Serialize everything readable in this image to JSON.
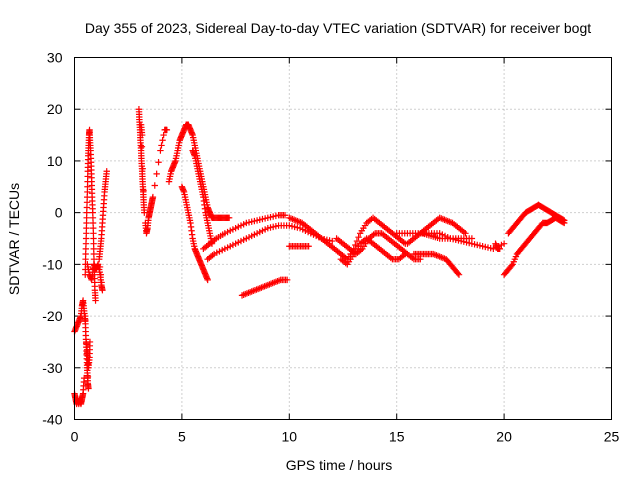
{
  "chart_data": {
    "type": "scatter",
    "title": "Day 355 of 2023, Sidereal Day-to-day VTEC variation (SDTVAR) for receiver bogt",
    "xlabel": "GPS time / hours",
    "ylabel": "SDTVAR / TECUs",
    "xlim": [
      0,
      25
    ],
    "ylim": [
      -40,
      30
    ],
    "xticks": [
      "0",
      "5",
      "10",
      "15",
      "20",
      "25"
    ],
    "yticks": [
      "-40",
      "-30",
      "-20",
      "-10",
      "0",
      "10",
      "20",
      "30"
    ],
    "grid": true,
    "marker": "+",
    "color": "#ff0000",
    "series": [
      {
        "name": "s1",
        "points": [
          [
            0.0,
            -23
          ],
          [
            0.1,
            -22
          ],
          [
            0.2,
            -21
          ],
          [
            0.3,
            -20
          ],
          [
            0.35,
            -18
          ],
          [
            0.4,
            -17
          ],
          [
            0.45,
            -19
          ],
          [
            0.5,
            -21
          ]
        ]
      },
      {
        "name": "s2",
        "points": [
          [
            0.0,
            -35
          ],
          [
            0.05,
            -36
          ],
          [
            0.1,
            -37
          ],
          [
            0.15,
            -36
          ],
          [
            0.2,
            -37
          ],
          [
            0.25,
            -36
          ],
          [
            0.3,
            -37
          ],
          [
            0.35,
            -36
          ],
          [
            0.4,
            -35
          ],
          [
            0.45,
            -32
          ]
        ]
      },
      {
        "name": "s3",
        "points": [
          [
            0.5,
            -20
          ],
          [
            0.52,
            -23
          ],
          [
            0.55,
            -26
          ],
          [
            0.58,
            -29
          ],
          [
            0.6,
            -31
          ],
          [
            0.62,
            -33
          ],
          [
            0.65,
            -34
          ],
          [
            0.55,
            -25
          ],
          [
            0.6,
            -27
          ],
          [
            0.65,
            -30
          ],
          [
            0.7,
            -28
          ],
          [
            0.72,
            -25
          ]
        ]
      },
      {
        "name": "s4",
        "points": [
          [
            0.5,
            -12
          ],
          [
            0.52,
            -8
          ],
          [
            0.55,
            -4
          ],
          [
            0.57,
            0
          ],
          [
            0.6,
            4
          ],
          [
            0.62,
            8
          ],
          [
            0.64,
            11
          ],
          [
            0.66,
            13
          ],
          [
            0.68,
            15
          ],
          [
            0.7,
            16
          ],
          [
            0.72,
            14
          ],
          [
            0.75,
            12
          ],
          [
            0.78,
            9
          ],
          [
            0.8,
            6
          ],
          [
            0.82,
            3
          ],
          [
            0.85,
            0
          ],
          [
            0.88,
            -4
          ],
          [
            0.9,
            -8
          ],
          [
            0.93,
            -12
          ],
          [
            0.95,
            -15
          ],
          [
            0.98,
            -17
          ]
        ]
      },
      {
        "name": "s5",
        "points": [
          [
            0.6,
            -10
          ],
          [
            0.7,
            -12
          ],
          [
            0.8,
            -13
          ],
          [
            0.9,
            -10
          ],
          [
            1.0,
            -11
          ],
          [
            1.1,
            -10
          ],
          [
            1.2,
            -12
          ],
          [
            1.25,
            -14
          ],
          [
            1.3,
            -15
          ],
          [
            1.15,
            -9
          ],
          [
            1.2,
            -7
          ],
          [
            1.25,
            -5
          ],
          [
            1.3,
            -2
          ],
          [
            1.35,
            1
          ],
          [
            1.4,
            4
          ],
          [
            1.45,
            6
          ],
          [
            1.5,
            8
          ]
        ]
      },
      {
        "name": "s6",
        "points": [
          [
            3.0,
            20
          ],
          [
            3.02,
            18
          ],
          [
            3.05,
            16
          ],
          [
            3.07,
            14
          ],
          [
            3.1,
            12
          ],
          [
            3.12,
            10
          ],
          [
            3.15,
            8
          ],
          [
            3.17,
            6
          ],
          [
            3.2,
            4
          ],
          [
            3.22,
            2
          ],
          [
            3.25,
            0
          ],
          [
            3.1,
            17
          ],
          [
            3.15,
            15
          ]
        ]
      },
      {
        "name": "s7",
        "points": [
          [
            3.3,
            -2
          ],
          [
            3.35,
            -4
          ],
          [
            3.4,
            -3
          ],
          [
            3.45,
            -1
          ],
          [
            3.5,
            0
          ],
          [
            3.55,
            1
          ],
          [
            3.6,
            2
          ],
          [
            3.65,
            3
          ],
          [
            4.0,
            12
          ],
          [
            4.2,
            16
          ],
          [
            4.3,
            16
          ]
        ]
      },
      {
        "name": "s8",
        "points": [
          [
            4.4,
            6
          ],
          [
            4.5,
            8
          ],
          [
            4.6,
            9
          ],
          [
            4.7,
            10
          ],
          [
            4.8,
            12
          ],
          [
            4.9,
            14
          ],
          [
            5.0,
            15
          ],
          [
            5.1,
            16
          ],
          [
            5.2,
            17
          ],
          [
            5.3,
            17
          ],
          [
            5.4,
            16
          ],
          [
            5.5,
            15
          ],
          [
            5.6,
            13
          ],
          [
            5.7,
            11
          ],
          [
            5.8,
            9
          ],
          [
            5.9,
            7
          ],
          [
            6.0,
            5
          ],
          [
            6.1,
            3
          ],
          [
            6.2,
            1
          ],
          [
            6.3,
            0
          ],
          [
            6.4,
            -1
          ],
          [
            6.6,
            -1
          ],
          [
            6.8,
            -1
          ],
          [
            7.0,
            -1
          ],
          [
            7.2,
            -1
          ]
        ]
      },
      {
        "name": "s9",
        "points": [
          [
            5.0,
            5
          ],
          [
            5.1,
            4
          ],
          [
            5.2,
            2
          ],
          [
            5.3,
            0
          ],
          [
            5.4,
            -2
          ],
          [
            5.5,
            -5
          ],
          [
            5.6,
            -7
          ],
          [
            5.7,
            -8
          ],
          [
            5.8,
            -9
          ],
          [
            5.9,
            -10
          ],
          [
            6.0,
            -11
          ],
          [
            6.1,
            -12
          ],
          [
            6.2,
            -13
          ]
        ]
      },
      {
        "name": "s10",
        "points": [
          [
            5.5,
            12
          ],
          [
            5.6,
            11
          ],
          [
            5.7,
            9
          ],
          [
            5.8,
            7
          ],
          [
            5.9,
            5
          ],
          [
            6.0,
            3
          ],
          [
            6.1,
            0
          ],
          [
            6.2,
            -2
          ],
          [
            6.3,
            -4
          ],
          [
            6.4,
            -6
          ]
        ]
      },
      {
        "name": "s11",
        "points": [
          [
            6.0,
            -7
          ],
          [
            6.3,
            -6
          ],
          [
            6.6,
            -5
          ],
          [
            7.0,
            -4
          ],
          [
            7.5,
            -3
          ],
          [
            8.0,
            -2
          ],
          [
            8.5,
            -1.5
          ],
          [
            9.0,
            -1
          ],
          [
            9.5,
            -0.5
          ],
          [
            9.8,
            -0.5
          ]
        ]
      },
      {
        "name": "s12",
        "points": [
          [
            6.2,
            -9
          ],
          [
            6.5,
            -8
          ],
          [
            7.0,
            -7
          ],
          [
            7.5,
            -6
          ],
          [
            8.0,
            -5
          ],
          [
            8.5,
            -4
          ],
          [
            9.0,
            -3
          ],
          [
            9.5,
            -2.5
          ],
          [
            10.0,
            -2.5
          ],
          [
            10.5,
            -3
          ],
          [
            11.0,
            -4
          ],
          [
            11.5,
            -5
          ],
          [
            12.0,
            -5.5
          ]
        ]
      },
      {
        "name": "s13",
        "points": [
          [
            7.8,
            -16
          ],
          [
            8.1,
            -15.5
          ],
          [
            8.4,
            -15
          ],
          [
            8.7,
            -14.5
          ],
          [
            9.0,
            -14
          ],
          [
            9.3,
            -13.5
          ],
          [
            9.6,
            -13
          ],
          [
            9.9,
            -13
          ]
        ]
      },
      {
        "name": "s14",
        "points": [
          [
            10.0,
            -1
          ],
          [
            10.3,
            -1.5
          ],
          [
            10.6,
            -2
          ],
          [
            10.9,
            -3
          ],
          [
            11.2,
            -4
          ],
          [
            11.5,
            -5
          ],
          [
            11.8,
            -6
          ],
          [
            12.1,
            -7
          ],
          [
            12.4,
            -8
          ],
          [
            12.7,
            -9
          ],
          [
            13.0,
            -7
          ],
          [
            13.3,
            -4
          ],
          [
            13.6,
            -2
          ],
          [
            13.9,
            -1
          ],
          [
            14.2,
            -2
          ],
          [
            14.5,
            -3
          ],
          [
            14.8,
            -4
          ],
          [
            15.1,
            -5
          ],
          [
            15.4,
            -6
          ]
        ]
      },
      {
        "name": "s15",
        "points": [
          [
            10.0,
            -6.5
          ],
          [
            10.3,
            -6.5
          ],
          [
            10.6,
            -6.5
          ],
          [
            10.9,
            -6.5
          ]
        ]
      },
      {
        "name": "s16",
        "points": [
          [
            12.2,
            -5
          ],
          [
            12.5,
            -6
          ],
          [
            12.8,
            -7
          ],
          [
            13.1,
            -8
          ],
          [
            13.4,
            -7
          ],
          [
            13.7,
            -5
          ],
          [
            14.0,
            -4
          ],
          [
            14.3,
            -4
          ],
          [
            14.6,
            -5
          ],
          [
            14.9,
            -6
          ],
          [
            15.2,
            -7
          ],
          [
            15.5,
            -8
          ],
          [
            15.8,
            -9
          ],
          [
            16.1,
            -9
          ]
        ]
      },
      {
        "name": "s17",
        "points": [
          [
            12.4,
            -9
          ],
          [
            12.7,
            -10
          ],
          [
            13.0,
            -8
          ],
          [
            13.3,
            -6
          ],
          [
            13.6,
            -5
          ],
          [
            13.9,
            -6
          ],
          [
            14.2,
            -7
          ],
          [
            14.5,
            -8
          ],
          [
            14.8,
            -9
          ],
          [
            15.1,
            -9
          ],
          [
            15.4,
            -8
          ]
        ]
      },
      {
        "name": "s18",
        "points": [
          [
            15.0,
            -4
          ],
          [
            15.5,
            -4
          ],
          [
            16.0,
            -4
          ],
          [
            16.5,
            -4
          ],
          [
            17.0,
            -4
          ],
          [
            17.5,
            -5
          ],
          [
            18.0,
            -5.5
          ],
          [
            18.5,
            -6
          ],
          [
            19.0,
            -6.5
          ],
          [
            19.5,
            -7
          ],
          [
            20.0,
            -6
          ]
        ]
      },
      {
        "name": "s19",
        "points": [
          [
            15.5,
            -6
          ],
          [
            15.8,
            -5
          ],
          [
            16.1,
            -4
          ],
          [
            16.4,
            -3
          ],
          [
            16.7,
            -2
          ],
          [
            17.0,
            -1
          ],
          [
            17.3,
            -1.5
          ],
          [
            17.6,
            -2
          ],
          [
            17.9,
            -3
          ],
          [
            18.2,
            -4
          ]
        ]
      },
      {
        "name": "s20",
        "points": [
          [
            15.8,
            -8
          ],
          [
            16.1,
            -8
          ],
          [
            16.4,
            -8
          ],
          [
            16.7,
            -8
          ],
          [
            17.0,
            -8.5
          ],
          [
            17.3,
            -9
          ],
          [
            17.5,
            -10
          ],
          [
            17.7,
            -11
          ],
          [
            17.9,
            -12
          ]
        ]
      },
      {
        "name": "s21",
        "points": [
          [
            16.2,
            -4
          ],
          [
            16.6,
            -4.5
          ],
          [
            17.0,
            -5
          ],
          [
            17.5,
            -5
          ],
          [
            18.0,
            -5
          ],
          [
            18.5,
            -5
          ]
        ]
      },
      {
        "name": "s22",
        "points": [
          [
            19.6,
            -6
          ],
          [
            19.7,
            -7
          ],
          [
            19.8,
            -7
          ]
        ]
      },
      {
        "name": "s23",
        "points": [
          [
            20.0,
            -12
          ],
          [
            20.2,
            -11
          ],
          [
            20.4,
            -10
          ],
          [
            20.6,
            -8
          ],
          [
            20.8,
            -7
          ],
          [
            21.0,
            -6
          ],
          [
            21.2,
            -5
          ],
          [
            21.4,
            -4
          ],
          [
            21.6,
            -3
          ],
          [
            21.8,
            -2
          ],
          [
            22.0,
            -2
          ],
          [
            22.2,
            -1.5
          ],
          [
            22.4,
            -1
          ],
          [
            22.6,
            -1.5
          ],
          [
            22.8,
            -2
          ]
        ]
      },
      {
        "name": "s24",
        "points": [
          [
            20.2,
            -4
          ],
          [
            20.4,
            -3
          ],
          [
            20.6,
            -2
          ],
          [
            20.8,
            -1
          ],
          [
            21.0,
            0
          ],
          [
            21.2,
            0.5
          ],
          [
            21.4,
            1
          ],
          [
            21.6,
            1.5
          ],
          [
            21.8,
            1
          ],
          [
            22.0,
            0.5
          ],
          [
            22.2,
            0
          ],
          [
            22.4,
            -0.5
          ],
          [
            22.6,
            -1
          ],
          [
            22.8,
            -1.5
          ]
        ]
      }
    ]
  }
}
